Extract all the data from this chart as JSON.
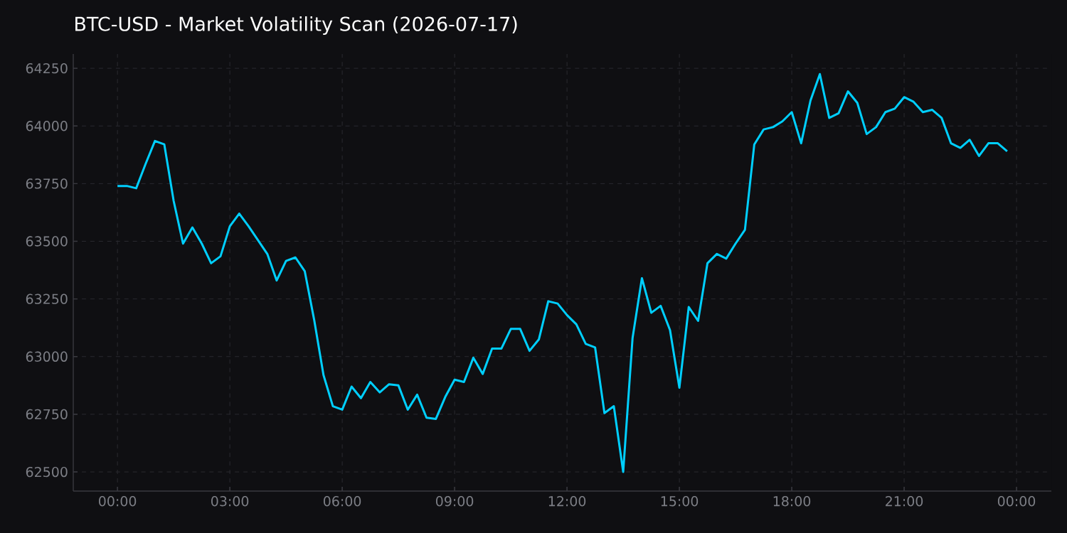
{
  "chart_data": {
    "type": "line",
    "title": "BTC-USD - Market Volatility Scan (2026-07-17)",
    "x": [
      0,
      0.25,
      0.5,
      0.75,
      1,
      1.25,
      1.5,
      1.75,
      2,
      2.25,
      2.5,
      2.75,
      3,
      3.25,
      3.5,
      3.75,
      4,
      4.25,
      4.5,
      4.75,
      5,
      5.25,
      5.5,
      5.75,
      6,
      6.25,
      6.5,
      6.75,
      7,
      7.25,
      7.5,
      7.75,
      8,
      8.25,
      8.5,
      8.75,
      9,
      9.25,
      9.5,
      9.75,
      10,
      10.25,
      10.5,
      10.75,
      11,
      11.25,
      11.5,
      11.75,
      12,
      12.25,
      12.5,
      12.75,
      13,
      13.25,
      13.5,
      13.75,
      14,
      14.25,
      14.5,
      14.75,
      15,
      15.25,
      15.5,
      15.75,
      16,
      16.25,
      16.5,
      16.75,
      17,
      17.25,
      17.5,
      17.75,
      18,
      18.25,
      18.5,
      18.75,
      19,
      19.25,
      19.5,
      19.75,
      20,
      20.25,
      20.5,
      20.75,
      21,
      21.25,
      21.5,
      21.75,
      22,
      22.25,
      22.5,
      22.75,
      23,
      23.25,
      23.5,
      23.75
    ],
    "series": [
      {
        "color": "#00cfff",
        "values": [
          63740,
          63740,
          63730,
          63835,
          63935,
          63920,
          63675,
          63490,
          63560,
          63490,
          63405,
          63435,
          63565,
          63620,
          63565,
          63505,
          63445,
          63330,
          63415,
          63430,
          63370,
          63160,
          62920,
          62785,
          62770,
          62870,
          62820,
          62890,
          62845,
          62880,
          62875,
          62770,
          62835,
          62735,
          62730,
          62825,
          62900,
          62890,
          62995,
          62925,
          63035,
          63035,
          63120,
          63120,
          63025,
          63075,
          63240,
          63230,
          63180,
          63140,
          63055,
          63040,
          62755,
          62785,
          62500,
          63080,
          63340,
          63190,
          63220,
          63115,
          62865,
          63215,
          63155,
          63405,
          63445,
          63425,
          63490,
          63550,
          63920,
          63985,
          63995,
          64020,
          64060,
          63925,
          64110,
          64225,
          64035,
          64055,
          64150,
          64100,
          63965,
          63995,
          64060,
          64075,
          64125,
          64105,
          64060,
          64070,
          64035,
          63925,
          63905,
          63940,
          63870,
          63925,
          63925,
          63890
        ]
      }
    ],
    "xlim": [
      -1.18,
      24.93
    ],
    "ylim": [
      62417,
      64312
    ],
    "xticks": [
      {
        "value": 0,
        "label": "00:00"
      },
      {
        "value": 3,
        "label": "03:00"
      },
      {
        "value": 6,
        "label": "06:00"
      },
      {
        "value": 9,
        "label": "09:00"
      },
      {
        "value": 12,
        "label": "12:00"
      },
      {
        "value": 15,
        "label": "15:00"
      },
      {
        "value": 18,
        "label": "18:00"
      },
      {
        "value": 21,
        "label": "21:00"
      },
      {
        "value": 24,
        "label": "00:00"
      }
    ],
    "yticks": [
      62500,
      62750,
      63000,
      63250,
      63500,
      63750,
      64000,
      64250
    ],
    "grid": true
  }
}
